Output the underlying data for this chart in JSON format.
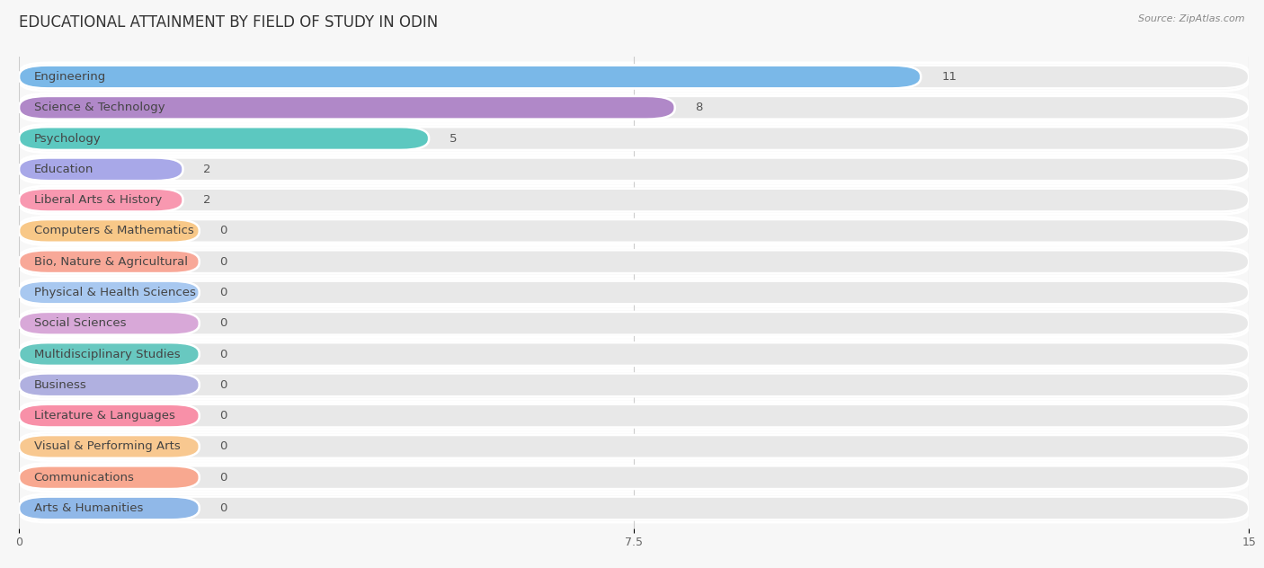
{
  "title": "EDUCATIONAL ATTAINMENT BY FIELD OF STUDY IN ODIN",
  "source": "Source: ZipAtlas.com",
  "categories": [
    "Engineering",
    "Science & Technology",
    "Psychology",
    "Education",
    "Liberal Arts & History",
    "Computers & Mathematics",
    "Bio, Nature & Agricultural",
    "Physical & Health Sciences",
    "Social Sciences",
    "Multidisciplinary Studies",
    "Business",
    "Literature & Languages",
    "Visual & Performing Arts",
    "Communications",
    "Arts & Humanities"
  ],
  "values": [
    11,
    8,
    5,
    2,
    2,
    0,
    0,
    0,
    0,
    0,
    0,
    0,
    0,
    0,
    0
  ],
  "colors": [
    "#7ab8e8",
    "#b088c8",
    "#5cc8c0",
    "#a8a8e8",
    "#f898b0",
    "#f8c888",
    "#f8a898",
    "#a8c8f0",
    "#d8a8d8",
    "#68c8c0",
    "#b0b0e0",
    "#f890a8",
    "#f8c890",
    "#f8a890",
    "#90b8e8"
  ],
  "xlim": [
    0,
    15
  ],
  "xticks": [
    0,
    7.5,
    15
  ],
  "background_color": "#f7f7f7",
  "bar_background": "#e8e8e8",
  "row_background_odd": "#f0f0f0",
  "row_background_even": "#fafafa",
  "title_fontsize": 12,
  "label_fontsize": 9.5,
  "value_fontsize": 9.5,
  "zero_bar_width": 2.2
}
